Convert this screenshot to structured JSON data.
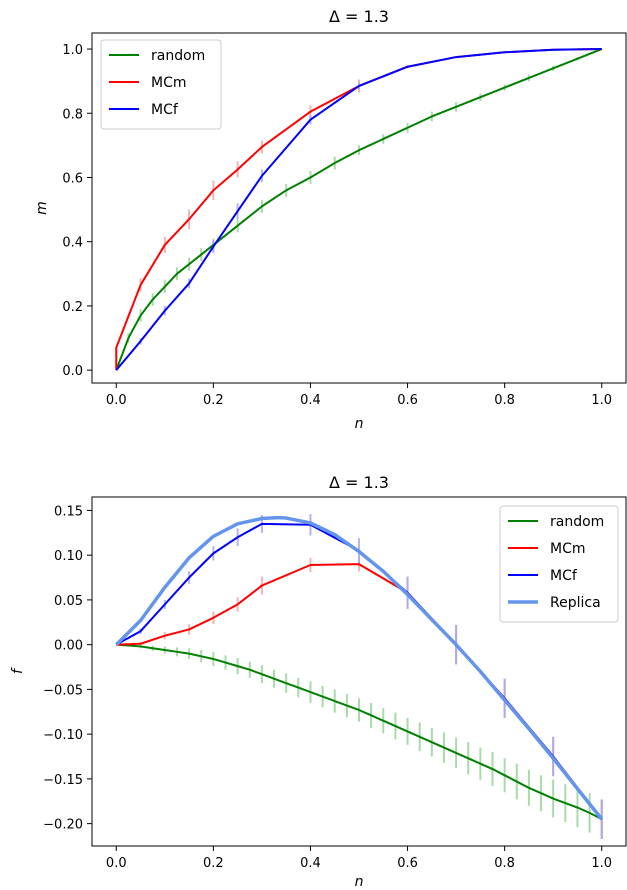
{
  "chart_data": [
    {
      "type": "line",
      "title": "Δ = 1.3",
      "xlabel": "n",
      "ylabel": "m",
      "xlim": [
        -0.05,
        1.05
      ],
      "ylim": [
        -0.04,
        1.05
      ],
      "xticks": [
        0.0,
        0.2,
        0.4,
        0.6,
        0.8,
        1.0
      ],
      "xtick_labels": [
        "0.0",
        "0.2",
        "0.4",
        "0.6",
        "0.8",
        "1.0"
      ],
      "yticks": [
        0.0,
        0.2,
        0.4,
        0.6,
        0.8,
        1.0
      ],
      "ytick_labels": [
        "0.0",
        "0.2",
        "0.4",
        "0.6",
        "0.8",
        "1.0"
      ],
      "grid": false,
      "legend_position": "top-left",
      "series": [
        {
          "name": "random",
          "color": "#008000",
          "error_color": "#9bd49b",
          "x": [
            0.0,
            0.025,
            0.05,
            0.075,
            0.1,
            0.125,
            0.15,
            0.175,
            0.2,
            0.25,
            0.3,
            0.35,
            0.4,
            0.45,
            0.5,
            0.55,
            0.6,
            0.65,
            0.7,
            0.75,
            0.8,
            0.85,
            0.9,
            0.95,
            1.0
          ],
          "y": [
            0.0,
            0.1,
            0.17,
            0.22,
            0.26,
            0.3,
            0.33,
            0.36,
            0.39,
            0.45,
            0.51,
            0.56,
            0.6,
            0.645,
            0.685,
            0.72,
            0.755,
            0.79,
            0.82,
            0.85,
            0.88,
            0.91,
            0.94,
            0.97,
            1.0
          ],
          "err": [
            0.0,
            0.015,
            0.02,
            0.02,
            0.02,
            0.02,
            0.02,
            0.02,
            0.02,
            0.02,
            0.02,
            0.02,
            0.02,
            0.02,
            0.015,
            0.015,
            0.015,
            0.015,
            0.015,
            0.012,
            0.01,
            0.01,
            0.008,
            0.005,
            0.0
          ]
        },
        {
          "name": "MCm",
          "color": "#ff0000",
          "error_color": "#f4a6a6",
          "x": [
            0.0,
            0.0,
            0.05,
            0.1,
            0.15,
            0.2,
            0.25,
            0.3,
            0.4,
            0.5,
            0.6,
            0.7,
            0.8,
            0.9,
            1.0
          ],
          "y": [
            0.0,
            0.07,
            0.265,
            0.39,
            0.47,
            0.56,
            0.625,
            0.695,
            0.805,
            0.885,
            0.945,
            0.975,
            0.99,
            0.998,
            1.0
          ],
          "err": [
            0.0,
            0.0,
            0.02,
            0.025,
            0.03,
            0.03,
            0.025,
            0.02,
            0.02,
            0.02,
            0.0,
            0.0,
            0.0,
            0.0,
            0.0
          ]
        },
        {
          "name": "MCf",
          "color": "#0000ff",
          "error_color": "#a6a6f4",
          "x": [
            0.0,
            0.05,
            0.1,
            0.15,
            0.2,
            0.25,
            0.3,
            0.4,
            0.5,
            0.6,
            0.7,
            0.8,
            0.9,
            1.0
          ],
          "y": [
            0.0,
            0.09,
            0.185,
            0.27,
            0.385,
            0.495,
            0.605,
            0.78,
            0.885,
            0.945,
            0.975,
            0.99,
            0.998,
            1.0
          ],
          "err": [
            0.0,
            0.01,
            0.015,
            0.015,
            0.02,
            0.025,
            0.02,
            0.015,
            0.01,
            0.005,
            0.0,
            0.0,
            0.0,
            0.0
          ]
        }
      ]
    },
    {
      "type": "line",
      "title": "Δ = 1.3",
      "xlabel": "n",
      "ylabel": "f",
      "xlim": [
        -0.05,
        1.05
      ],
      "ylim": [
        -0.225,
        0.165
      ],
      "xticks": [
        0.0,
        0.2,
        0.4,
        0.6,
        0.8,
        1.0
      ],
      "xtick_labels": [
        "0.0",
        "0.2",
        "0.4",
        "0.6",
        "0.8",
        "1.0"
      ],
      "yticks": [
        0.15,
        0.1,
        0.05,
        0.0,
        -0.05,
        -0.1,
        -0.15,
        -0.2
      ],
      "ytick_labels": [
        "0.15",
        "0.10",
        "0.05",
        "0.00",
        "−0.05",
        "−0.10",
        "−0.15",
        "−0.20"
      ],
      "grid": false,
      "legend_position": "top-right",
      "series": [
        {
          "name": "random",
          "color": "#008000",
          "error_color": "#9bd49b",
          "x": [
            0.0,
            0.025,
            0.05,
            0.075,
            0.1,
            0.125,
            0.15,
            0.175,
            0.2,
            0.225,
            0.25,
            0.275,
            0.3,
            0.325,
            0.35,
            0.375,
            0.4,
            0.425,
            0.45,
            0.475,
            0.5,
            0.525,
            0.55,
            0.575,
            0.6,
            0.625,
            0.65,
            0.675,
            0.7,
            0.725,
            0.75,
            0.775,
            0.8,
            0.825,
            0.85,
            0.875,
            0.9,
            0.925,
            0.95,
            0.975,
            1.0
          ],
          "y": [
            0.0,
            -0.001,
            -0.002,
            -0.004,
            -0.006,
            -0.008,
            -0.01,
            -0.013,
            -0.016,
            -0.02,
            -0.024,
            -0.028,
            -0.033,
            -0.038,
            -0.043,
            -0.048,
            -0.053,
            -0.058,
            -0.063,
            -0.068,
            -0.073,
            -0.079,
            -0.085,
            -0.091,
            -0.097,
            -0.103,
            -0.109,
            -0.115,
            -0.121,
            -0.127,
            -0.133,
            -0.139,
            -0.146,
            -0.153,
            -0.16,
            -0.166,
            -0.172,
            -0.177,
            -0.182,
            -0.188,
            -0.195
          ],
          "err": [
            0.0,
            0.001,
            0.002,
            0.003,
            0.004,
            0.005,
            0.006,
            0.007,
            0.008,
            0.008,
            0.009,
            0.009,
            0.01,
            0.01,
            0.011,
            0.011,
            0.012,
            0.012,
            0.013,
            0.013,
            0.013,
            0.014,
            0.014,
            0.015,
            0.015,
            0.016,
            0.016,
            0.017,
            0.017,
            0.018,
            0.018,
            0.019,
            0.019,
            0.02,
            0.02,
            0.02,
            0.021,
            0.021,
            0.022,
            0.022,
            0.022
          ]
        },
        {
          "name": "MCm",
          "color": "#ff0000",
          "error_color": "#f4a6a6",
          "x": [
            0.0,
            0.05,
            0.1,
            0.15,
            0.2,
            0.25,
            0.3,
            0.4,
            0.5,
            0.6,
            0.7,
            0.8,
            0.9,
            1.0
          ],
          "y": [
            0.0,
            0.001,
            0.01,
            0.017,
            0.03,
            0.045,
            0.066,
            0.089,
            0.09,
            0.058,
            0.0,
            -0.06,
            -0.125,
            -0.195
          ],
          "err": [
            0.0,
            0.002,
            0.004,
            0.006,
            0.007,
            0.008,
            0.01,
            0.008,
            0.008,
            0.018,
            0.022,
            0.022,
            0.022,
            0.022
          ]
        },
        {
          "name": "MCf",
          "color": "#0000ff",
          "error_color": "#a6a6f4",
          "x": [
            0.0,
            0.05,
            0.1,
            0.15,
            0.2,
            0.25,
            0.3,
            0.4,
            0.5,
            0.6,
            0.7,
            0.8,
            0.9,
            1.0
          ],
          "y": [
            0.0,
            0.015,
            0.045,
            0.075,
            0.102,
            0.12,
            0.135,
            0.134,
            0.105,
            0.058,
            0.0,
            -0.06,
            -0.125,
            -0.195
          ],
          "err": [
            0.0,
            0.003,
            0.005,
            0.007,
            0.008,
            0.01,
            0.01,
            0.012,
            0.014,
            0.018,
            0.022,
            0.022,
            0.022,
            0.022
          ]
        },
        {
          "name": "Replica",
          "color": "#6495ed",
          "x": [
            0.0,
            0.05,
            0.1,
            0.15,
            0.2,
            0.25,
            0.3,
            0.333,
            0.35,
            0.4,
            0.45,
            0.5,
            0.55,
            0.6,
            0.65,
            0.7,
            0.75,
            0.8,
            0.85,
            0.9,
            0.95,
            1.0
          ],
          "y": [
            0.0,
            0.027,
            0.064,
            0.097,
            0.121,
            0.135,
            0.141,
            0.142,
            0.1415,
            0.136,
            0.123,
            0.104,
            0.082,
            0.056,
            0.028,
            0.0,
            -0.03,
            -0.062,
            -0.094,
            -0.127,
            -0.161,
            -0.195
          ]
        }
      ]
    }
  ]
}
